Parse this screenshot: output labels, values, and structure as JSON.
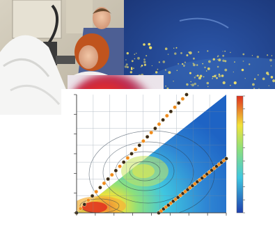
{
  "collage": {
    "panels": [
      {
        "name": "lab-photo",
        "description": "researchers-at-microscope"
      },
      {
        "name": "fluorescence-micrograph",
        "description": "yellow-dots-on-blue"
      },
      {
        "name": "thermal-image",
        "description": "red-heat-blob"
      },
      {
        "name": "contour-heatmap",
        "description": "rainbow-contour-plot"
      }
    ],
    "colors": {
      "micrograph_bg": "#2b4e9c",
      "dots": "#f3e36a",
      "heat_red": "#e02828",
      "plot_blue": "#1e63c4",
      "plot_cyan": "#3fc6e0",
      "plot_yellow": "#f2e23a",
      "plot_red": "#e0301e"
    }
  },
  "chart_data": {
    "type": "heatmap",
    "title": "",
    "xlabel": "",
    "ylabel": "",
    "grid": true,
    "colorbar": "right",
    "x_ticks": [
      "",
      "",
      "",
      "",
      "",
      "",
      "",
      "",
      ""
    ],
    "y_ticks": [
      "",
      "",
      "",
      "",
      "",
      "",
      ""
    ],
    "colorbar_ticks": [
      "",
      "",
      "",
      "",
      "",
      "",
      "",
      "",
      "",
      ""
    ]
  }
}
